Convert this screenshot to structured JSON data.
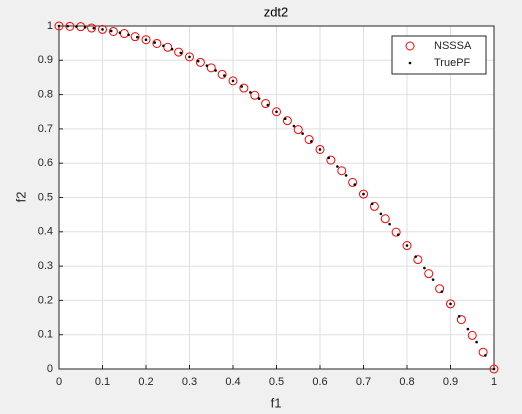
{
  "chart_data": {
    "type": "scatter",
    "title": "zdt2",
    "x_label": "f1",
    "y_label": "f2",
    "xlim": [
      0,
      1
    ],
    "ylim": [
      0,
      1
    ],
    "xticks": [
      0,
      0.1,
      0.2,
      0.3,
      0.4,
      0.5,
      0.6,
      0.7,
      0.8,
      0.9,
      1
    ],
    "yticks": [
      0,
      0.1,
      0.2,
      0.3,
      0.4,
      0.5,
      0.6,
      0.7,
      0.8,
      0.9,
      1
    ],
    "grid": true,
    "legend_location": "northeast",
    "series": [
      {
        "name": "NSSSA",
        "color": "#ff0000",
        "marker": "o",
        "x": [
          0,
          0.025,
          0.05,
          0.075,
          0.1,
          0.125,
          0.15,
          0.175,
          0.2,
          0.225,
          0.25,
          0.275,
          0.3,
          0.325,
          0.35,
          0.375,
          0.4,
          0.425,
          0.45,
          0.475,
          0.5,
          0.525,
          0.55,
          0.575,
          0.6,
          0.625,
          0.65,
          0.675,
          0.7,
          0.725,
          0.75,
          0.775,
          0.8,
          0.825,
          0.85,
          0.875,
          0.9,
          0.925,
          0.95,
          0.975,
          1
        ],
        "values": [
          1,
          0.999,
          0.998,
          0.994,
          0.99,
          0.984,
          0.978,
          0.969,
          0.96,
          0.949,
          0.938,
          0.924,
          0.91,
          0.894,
          0.878,
          0.859,
          0.84,
          0.819,
          0.798,
          0.774,
          0.75,
          0.724,
          0.698,
          0.669,
          0.64,
          0.609,
          0.578,
          0.544,
          0.51,
          0.474,
          0.438,
          0.399,
          0.36,
          0.319,
          0.278,
          0.234,
          0.19,
          0.144,
          0.098,
          0.049,
          0
        ]
      },
      {
        "name": "TruePF",
        "color": "#000000",
        "marker": ".",
        "x": [
          0,
          0.02,
          0.04,
          0.06,
          0.08,
          0.1,
          0.12,
          0.14,
          0.16,
          0.18,
          0.2,
          0.22,
          0.24,
          0.26,
          0.28,
          0.3,
          0.32,
          0.34,
          0.36,
          0.38,
          0.4,
          0.42,
          0.44,
          0.46,
          0.48,
          0.5,
          0.52,
          0.54,
          0.56,
          0.58,
          0.6,
          0.62,
          0.64,
          0.66,
          0.68,
          0.7,
          0.72,
          0.74,
          0.76,
          0.78,
          0.8,
          0.82,
          0.84,
          0.86,
          0.88,
          0.9,
          0.92,
          0.94,
          0.96,
          0.98,
          1
        ],
        "values": [
          1,
          0.9996,
          0.9984,
          0.9964,
          0.9936,
          0.99,
          0.9856,
          0.9804,
          0.9744,
          0.9676,
          0.96,
          0.9516,
          0.9424,
          0.9324,
          0.9216,
          0.91,
          0.8976,
          0.8844,
          0.8704,
          0.8556,
          0.84,
          0.8236,
          0.8064,
          0.7884,
          0.7696,
          0.75,
          0.7296,
          0.7084,
          0.6864,
          0.6636,
          0.64,
          0.6156,
          0.5904,
          0.5644,
          0.5376,
          0.51,
          0.4816,
          0.4524,
          0.4224,
          0.3916,
          0.36,
          0.3276,
          0.2944,
          0.2604,
          0.2256,
          0.19,
          0.1536,
          0.1164,
          0.0784,
          0.0396,
          0
        ]
      }
    ]
  }
}
